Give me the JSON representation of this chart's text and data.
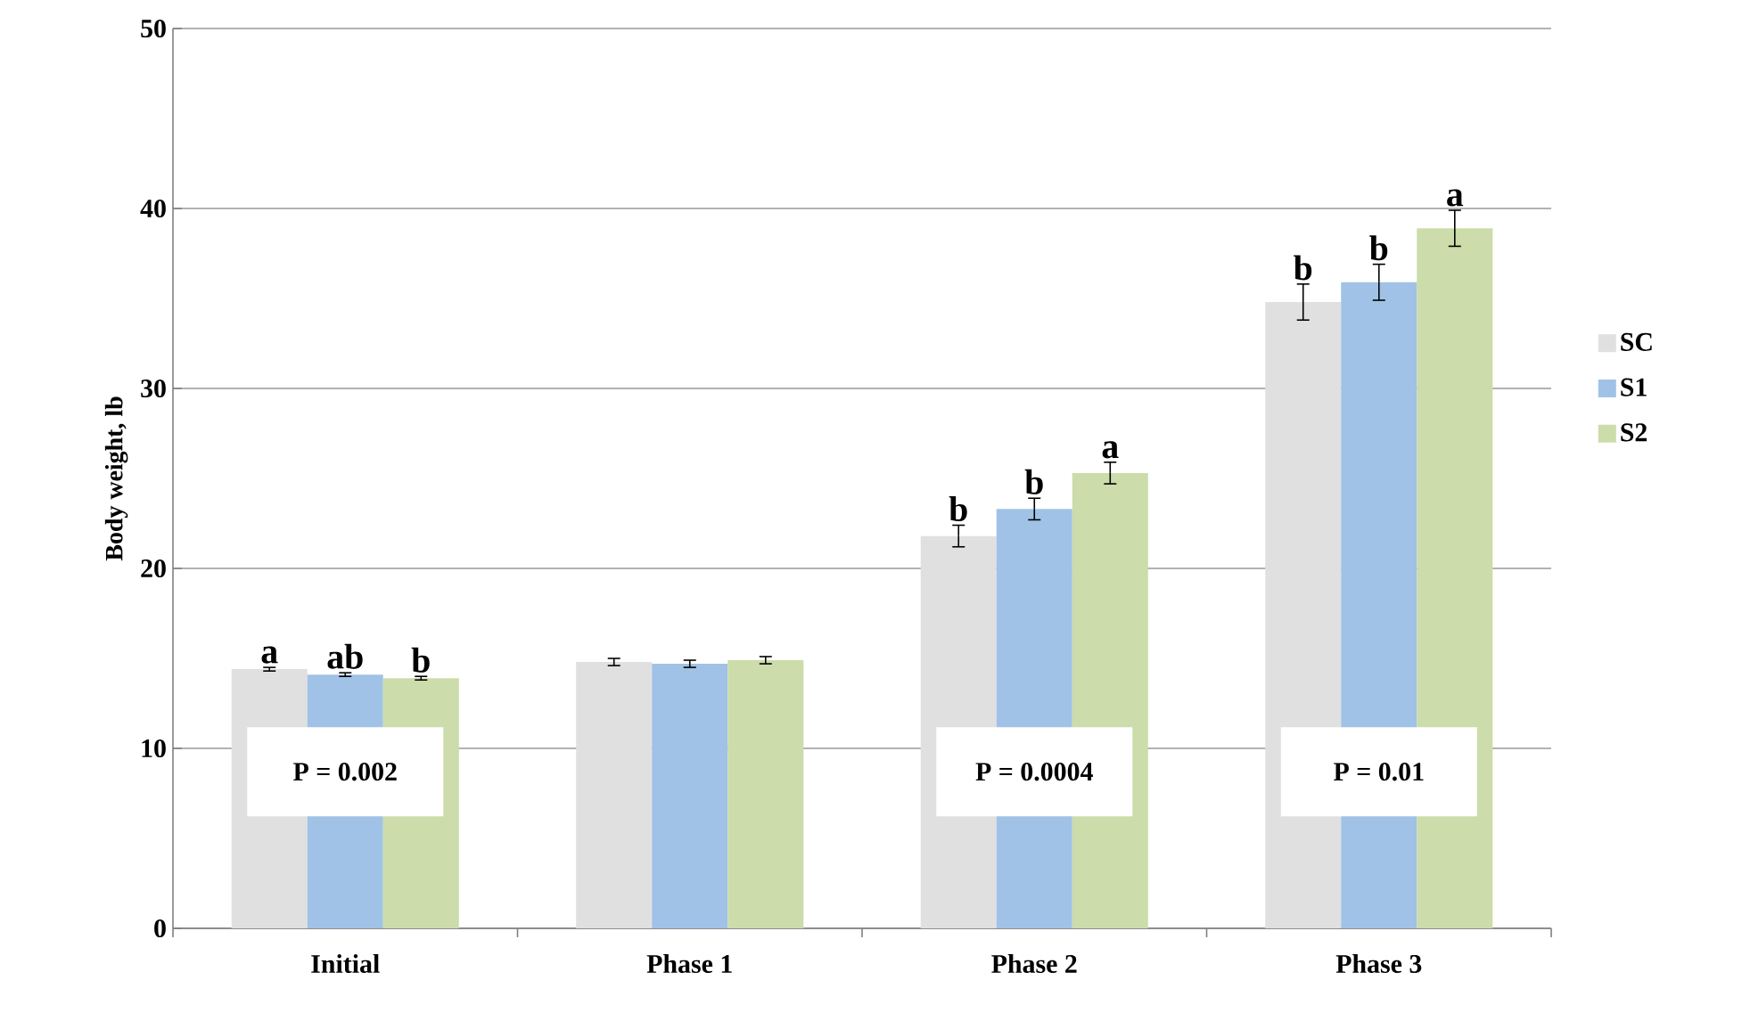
{
  "chart_data": {
    "type": "bar",
    "ylabel": "Body weight, lb",
    "categories": [
      "Initial",
      "Phase 1",
      "Phase 2",
      "Phase 3"
    ],
    "series": [
      {
        "name": "SC",
        "color": "#e0e0e0",
        "values": [
          14.4,
          14.8,
          21.8,
          34.8
        ],
        "errors": [
          0.1,
          0.2,
          0.6,
          1.0
        ]
      },
      {
        "name": "S1",
        "color": "#a0c2e6",
        "values": [
          14.1,
          14.7,
          23.3,
          35.9
        ],
        "errors": [
          0.1,
          0.2,
          0.6,
          1.0
        ]
      },
      {
        "name": "S2",
        "color": "#ccdcaa",
        "values": [
          13.9,
          14.9,
          25.3,
          38.9
        ],
        "errors": [
          0.1,
          0.2,
          0.6,
          1.0
        ]
      }
    ],
    "ylim": [
      0,
      50
    ],
    "yticks": [
      0,
      10,
      20,
      30,
      40,
      50
    ],
    "grid": "y",
    "legend": "right",
    "annotations": [
      "a",
      "ab",
      "b",
      "b",
      "b",
      "a",
      "b",
      "b",
      "a",
      "P = 0.002",
      "P = 0.0004",
      "P = 0.01"
    ]
  }
}
